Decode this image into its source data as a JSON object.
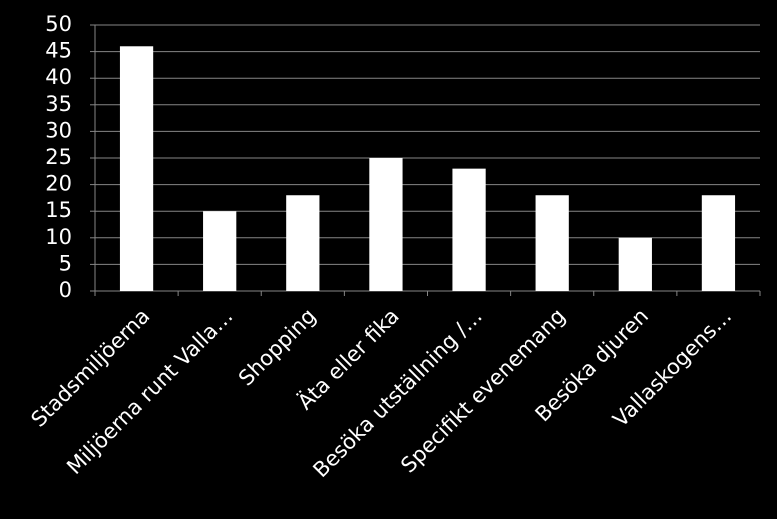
{
  "chart_data": {
    "type": "bar",
    "categories": [
      "Stadsmiljöerna",
      "Miljöerna runt Valla…",
      "Shopping",
      "Äta eller fika",
      "Besöka utställning /…",
      "Specifikt evenemang",
      "Besöka djuren",
      "Vallaskogens…"
    ],
    "values": [
      46,
      15,
      18,
      25,
      23,
      18,
      10,
      18
    ],
    "color": "#ffffff",
    "ylim": [
      0,
      50
    ],
    "yticks": [
      0,
      5,
      10,
      15,
      20,
      25,
      30,
      35,
      40,
      45,
      50
    ],
    "grid": true
  }
}
